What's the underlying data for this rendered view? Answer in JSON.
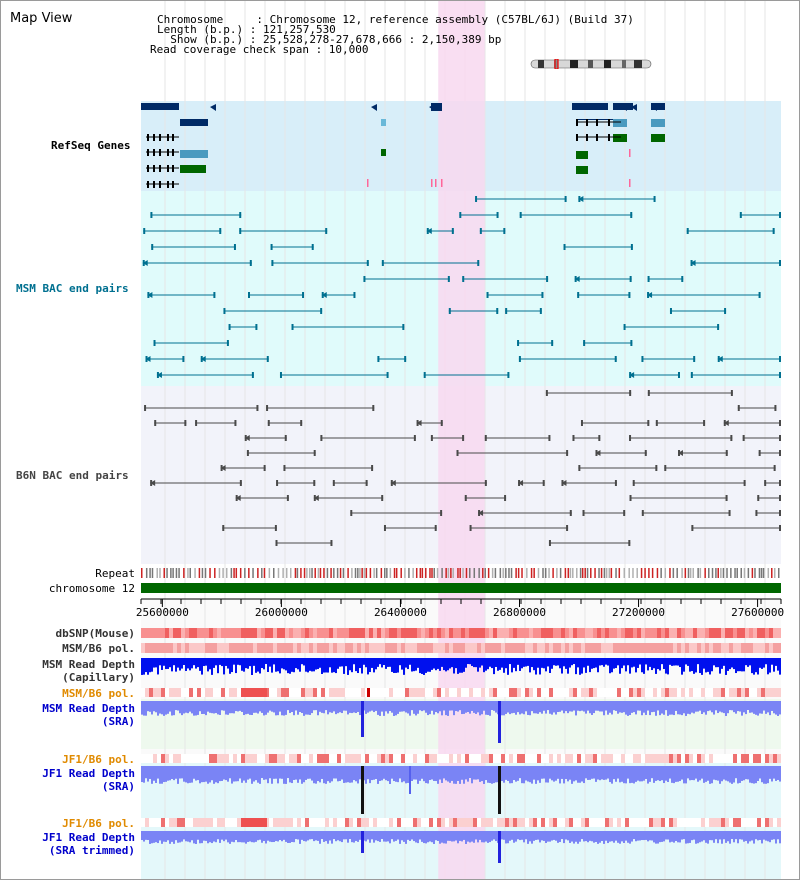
{
  "panel": {
    "title": "Map View"
  },
  "assembly_info": {
    "line1": "Chromosome     : Chromosome 12, reference assembly (C57BL/6J) (Build 37)",
    "line2": "Length (b.p.) : 121,257,530",
    "line3": "  Show (b.p.) : 25,528,278-27,678,666 : 2,150,389 bp",
    "line4": "Read coverage check span : 10,000"
  },
  "view": {
    "start_bp": 25528278,
    "end_bp": 27678666,
    "highlight_start_bp": 26527000,
    "highlight_end_bp": 26683000
  },
  "ruler": {
    "ticks": [
      "25600000",
      "26000000",
      "26400000",
      "26800000",
      "27200000",
      "27600000"
    ]
  },
  "tracks": {
    "refseq": {
      "label": "RefSeq Genes",
      "color": "#000099"
    },
    "msm_bac": {
      "label": "MSM BAC end pairs",
      "color": "#007090"
    },
    "b6n_bac": {
      "label": "B6N BAC end pairs",
      "color": "#4a4a4a"
    },
    "repeat": {
      "label": "Repeat"
    },
    "chromosome": {
      "label": "chromosome 12",
      "color": "#006600"
    },
    "dbsnp": {
      "label": "dbSNP(Mouse)"
    },
    "msm_b6_pol": {
      "label": "MSM/B6 pol."
    },
    "msm_depth_cap": {
      "line1": "MSM Read Depth",
      "line2": "(Capillary)"
    },
    "msm_b6_pol2": {
      "label": "MSM/B6 pol.",
      "color": "#e08a00"
    },
    "msm_depth_sra": {
      "line1": "MSM Read Depth",
      "line2": "(SRA)",
      "color": "#0000cc"
    },
    "jf1_b6_pol": {
      "label": "JF1/B6 pol.",
      "color": "#e08a00"
    },
    "jf1_depth_sra": {
      "line1": "JF1 Read Depth",
      "line2": "(SRA)",
      "color": "#0000cc"
    },
    "jf1_b6_pol2": {
      "label": "JF1/B6 pol.",
      "color": "#e08a00"
    },
    "jf1_depth_trim": {
      "line1": "JF1 Read Depth",
      "line2": "(SRA trimmed)",
      "color": "#0000cc"
    }
  },
  "colors": {
    "refseq_bg": "#d8eef9",
    "msm_bg": "#e0fbfb",
    "b6n_bg": "#f2f3fa",
    "highlight": "#f8d8f0",
    "bar_blue": "#0022ee",
    "bar_lightblue": "#7a84f5"
  }
}
